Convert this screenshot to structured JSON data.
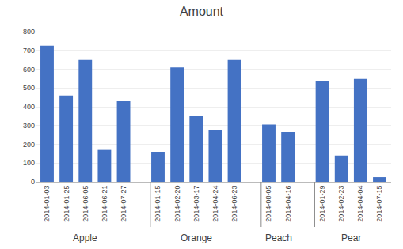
{
  "chart_data": {
    "type": "bar",
    "title": "Amount",
    "groups": [
      {
        "name": "Apple",
        "categories": [
          "2014-01-03",
          "2014-01-25",
          "2014-06-05",
          "2014-06-21",
          "2014-07-27"
        ],
        "values": [
          725,
          460,
          650,
          170,
          430
        ]
      },
      {
        "name": "Orange",
        "categories": [
          "2014-01-15",
          "2014-02-20",
          "2014-03-17",
          "2014-04-24",
          "2014-06-23"
        ],
        "values": [
          160,
          610,
          350,
          275,
          650
        ]
      },
      {
        "name": "Peach",
        "categories": [
          "2014-08-05",
          "2014-04-16"
        ],
        "values": [
          305,
          265
        ]
      },
      {
        "name": "Pear",
        "categories": [
          "2014-01-29",
          "2014-02-23",
          "2014-04-04",
          "2014-07-15"
        ],
        "values": [
          535,
          140,
          548,
          25
        ]
      }
    ],
    "color": "#4472C4",
    "ylim": [
      0,
      800
    ],
    "yticks": [
      0,
      100,
      200,
      300,
      400,
      500,
      600,
      700,
      800
    ],
    "grid": true
  }
}
